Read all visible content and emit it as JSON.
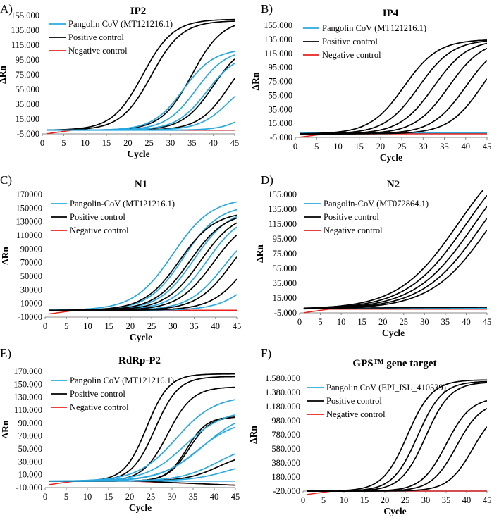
{
  "chart_data": [
    {
      "panel": "A)",
      "type": "line",
      "title": "IP2",
      "xlabel": "Cycle",
      "ylabel": "ΔRn",
      "xlim": [
        0,
        45
      ],
      "ylim": [
        -5000,
        155000
      ],
      "xticks": [
        0,
        5,
        10,
        15,
        20,
        25,
        30,
        35,
        40,
        45
      ],
      "xtick_labels": [
        "0",
        "5",
        "10",
        "15",
        "20",
        "25",
        "30",
        "35",
        "40",
        "45"
      ],
      "yticks": [
        -5000,
        15000,
        35000,
        55000,
        75000,
        95000,
        115000,
        135000,
        155000
      ],
      "ytick_labels": [
        "-5.000",
        "15.000",
        "35.000",
        "55.000",
        "75.000",
        "95.000",
        "115.000",
        "135.000",
        "155.000"
      ],
      "legend": [
        {
          "label": "Pangolin CoV (MT121216.1)",
          "color": "#29a9e0"
        },
        {
          "label": "Positive control",
          "color": "#000000"
        },
        {
          "label": "Negative control",
          "color": "#e8221c"
        }
      ],
      "curves": [
        {
          "group": "positive",
          "mid": 23.5,
          "max": 150000,
          "k": 0.28
        },
        {
          "group": "positive",
          "mid": 25.5,
          "max": 148000,
          "k": 0.28
        },
        {
          "group": "positive",
          "mid": 35.0,
          "max": 150000,
          "k": 0.28
        },
        {
          "group": "positive",
          "mid": 40.0,
          "max": 120000,
          "k": 0.28
        },
        {
          "group": "positive",
          "mid": 43.8,
          "max": 120000,
          "k": 0.28
        },
        {
          "group": "pangolin",
          "mid": 33.0,
          "max": 110000,
          "k": 0.28
        },
        {
          "group": "pangolin",
          "mid": 36.0,
          "max": 110000,
          "k": 0.28
        },
        {
          "group": "pangolin",
          "mid": 38.5,
          "max": 105000,
          "k": 0.28
        },
        {
          "group": "pangolin",
          "mid": 44.0,
          "max": 80000,
          "k": 0.28
        },
        {
          "group": "pangolin",
          "mid": 52.0,
          "max": 100000,
          "k": 0.3
        }
      ]
    },
    {
      "panel": "B)",
      "type": "line",
      "title": "IP4",
      "xlabel": "Cycle",
      "ylabel": "ΔRn",
      "xlim": [
        0,
        45
      ],
      "ylim": [
        -5000,
        155000
      ],
      "xticks": [
        0,
        5,
        10,
        15,
        20,
        25,
        30,
        35,
        40,
        45
      ],
      "xtick_labels": [
        "0",
        "5",
        "10",
        "15",
        "20",
        "25",
        "30",
        "35",
        "40",
        "45"
      ],
      "yticks": [
        -5000,
        15000,
        35000,
        55000,
        75000,
        95000,
        115000,
        135000,
        155000
      ],
      "ytick_labels": [
        "-5.000",
        "15.000",
        "35.000",
        "55.000",
        "75.000",
        "95.000",
        "115.000",
        "135.000",
        "155.000"
      ],
      "legend": [
        {
          "label": "Pangolin CoV (MT121216.1)",
          "color": "#29a9e0"
        },
        {
          "label": "Positive control",
          "color": "#000000"
        },
        {
          "label": "Negative control",
          "color": "#e8221c"
        }
      ],
      "curves": [
        {
          "group": "positive",
          "mid": 25.5,
          "max": 135000,
          "k": 0.25
        },
        {
          "group": "positive",
          "mid": 29.0,
          "max": 135000,
          "k": 0.25
        },
        {
          "group": "positive",
          "mid": 32.5,
          "max": 135000,
          "k": 0.25
        },
        {
          "group": "positive",
          "mid": 36.0,
          "max": 135000,
          "k": 0.25
        },
        {
          "group": "positive",
          "mid": 40.0,
          "max": 135000,
          "k": 0.25
        },
        {
          "group": "positive",
          "mid": 44.0,
          "max": 140000,
          "k": 0.25
        }
      ]
    },
    {
      "panel": "C)",
      "type": "line",
      "title": "N1",
      "xlabel": "Cycle",
      "ylabel": "ΔRn",
      "xlim": [
        0,
        45
      ],
      "ylim": [
        -10000,
        170000
      ],
      "xticks": [
        0,
        5,
        10,
        15,
        20,
        25,
        30,
        35,
        40,
        45
      ],
      "xtick_labels": [
        "0",
        "5",
        "10",
        "15",
        "20",
        "25",
        "30",
        "35",
        "40",
        "45"
      ],
      "yticks": [
        -10000,
        10000,
        30000,
        50000,
        70000,
        90000,
        110000,
        130000,
        150000,
        170000
      ],
      "ytick_labels": [
        "-10000",
        "10000",
        "30000",
        "50000",
        "70000",
        "90000",
        "110000",
        "130000",
        "150000",
        "170000"
      ],
      "legend": [
        {
          "label": "Pangolin-CoV (MT121216.1)",
          "color": "#29a9e0"
        },
        {
          "label": "Positive control",
          "color": "#000000"
        },
        {
          "label": "Negative control",
          "color": "#e8221c"
        }
      ],
      "curves": [
        {
          "group": "pangolin",
          "mid": 30.0,
          "max": 165000,
          "k": 0.22
        },
        {
          "group": "pangolin",
          "mid": 32.5,
          "max": 155000,
          "k": 0.24
        },
        {
          "group": "pangolin",
          "mid": 35.0,
          "max": 150000,
          "k": 0.24
        },
        {
          "group": "pangolin",
          "mid": 38.0,
          "max": 145000,
          "k": 0.24
        },
        {
          "group": "pangolin",
          "mid": 42.0,
          "max": 130000,
          "k": 0.24
        },
        {
          "group": "pangolin",
          "mid": 50.0,
          "max": 100000,
          "k": 0.24
        },
        {
          "group": "positive",
          "mid": 31.5,
          "max": 145000,
          "k": 0.24
        },
        {
          "group": "positive",
          "mid": 34.0,
          "max": 145000,
          "k": 0.24
        },
        {
          "group": "positive",
          "mid": 36.5,
          "max": 145000,
          "k": 0.24
        },
        {
          "group": "positive",
          "mid": 39.5,
          "max": 140000,
          "k": 0.24
        },
        {
          "group": "positive",
          "mid": 44.0,
          "max": 140000,
          "k": 0.24
        },
        {
          "group": "positive",
          "mid": 48.0,
          "max": 140000,
          "k": 0.24
        }
      ]
    },
    {
      "panel": "D)",
      "type": "line",
      "title": "N2",
      "xlabel": "Cycle",
      "ylabel": "ΔRn",
      "xlim": [
        0,
        45
      ],
      "ylim": [
        -5000,
        155000
      ],
      "xticks": [
        0,
        5,
        10,
        15,
        20,
        25,
        30,
        35,
        40,
        45
      ],
      "xtick_labels": [
        "0",
        "5",
        "10",
        "15",
        "20",
        "25",
        "30",
        "35",
        "40",
        "45"
      ],
      "yticks": [
        -5000,
        15000,
        35000,
        55000,
        75000,
        95000,
        115000,
        135000,
        155000
      ],
      "ytick_labels": [
        "-5.000",
        "15.000",
        "35.000",
        "55.000",
        "75.000",
        "95.000",
        "115.000",
        "135.000",
        "155.000"
      ],
      "legend": [
        {
          "label": "Pangolin-CoV (MT072864.1)",
          "color": "#29a9e0"
        },
        {
          "label": "Positive control",
          "color": "#000000"
        },
        {
          "label": "Negative control",
          "color": "#e8221c"
        }
      ],
      "curves": [
        {
          "group": "positive",
          "mid": 38.0,
          "max": 230000,
          "k": 0.14
        },
        {
          "group": "positive",
          "mid": 40.0,
          "max": 230000,
          "k": 0.14
        },
        {
          "group": "positive",
          "mid": 42.0,
          "max": 230000,
          "k": 0.14
        },
        {
          "group": "positive",
          "mid": 44.0,
          "max": 230000,
          "k": 0.14
        },
        {
          "group": "positive",
          "mid": 46.0,
          "max": 230000,
          "k": 0.14
        }
      ]
    },
    {
      "panel": "E)",
      "type": "line",
      "title": "RdRp-P2",
      "xlabel": "Cycle",
      "ylabel": "ΔRn",
      "xlim": [
        0,
        45
      ],
      "ylim": [
        -10000,
        170000
      ],
      "xticks": [
        0,
        5,
        10,
        15,
        20,
        25,
        30,
        35,
        40,
        45
      ],
      "xtick_labels": [
        "0",
        "5",
        "10",
        "15",
        "20",
        "25",
        "30",
        "35",
        "40",
        "45"
      ],
      "yticks": [
        -10000,
        10000,
        30000,
        50000,
        70000,
        90000,
        110000,
        130000,
        150000,
        170000
      ],
      "ytick_labels": [
        "-10.000",
        "10.000",
        "30.000",
        "50.000",
        "70.000",
        "90.000",
        "110.000",
        "130.000",
        "150.000",
        "170.000"
      ],
      "legend": [
        {
          "label": "Pangolin CoV (MT121216.1)",
          "color": "#29a9e0"
        },
        {
          "label": "Positive control",
          "color": "#000000"
        },
        {
          "label": "Negative control",
          "color": "#e8221c"
        }
      ],
      "curves": [
        {
          "group": "positive",
          "mid": 24.0,
          "max": 166000,
          "k": 0.38
        },
        {
          "group": "positive",
          "mid": 26.0,
          "max": 162000,
          "k": 0.36
        },
        {
          "group": "positive",
          "mid": 29.0,
          "max": 146000,
          "k": 0.34
        },
        {
          "group": "positive",
          "mid": 33.5,
          "max": 100000,
          "k": 0.42
        },
        {
          "group": "positive",
          "mid": 34.0,
          "max": 100000,
          "k": 0.4
        },
        {
          "group": "positive",
          "mid": 41.0,
          "max": 45000,
          "k": 0.26
        },
        {
          "group": "pangolin",
          "mid": 31.0,
          "max": 132000,
          "k": 0.22
        },
        {
          "group": "pangolin",
          "mid": 33.0,
          "max": 110000,
          "k": 0.22
        },
        {
          "group": "pangolin",
          "mid": 36.0,
          "max": 95000,
          "k": 0.22
        },
        {
          "group": "pangolin",
          "mid": 37.5,
          "max": 110000,
          "k": 0.2
        },
        {
          "group": "pangolin",
          "mid": 41.0,
          "max": 60000,
          "k": 0.22
        },
        {
          "group": "pangolin",
          "mid": 44.0,
          "max": 35000,
          "k": 0.22
        }
      ]
    },
    {
      "panel": "F)",
      "type": "line",
      "title": "GPS™ gene target",
      "xlabel": "Cycle",
      "ylabel": "ΔRn",
      "xlim": [
        0,
        45
      ],
      "ylim": [
        -20000,
        1580000
      ],
      "xticks": [
        0,
        5,
        10,
        15,
        20,
        25,
        30,
        35,
        40,
        45
      ],
      "xtick_labels": [
        "0",
        "5",
        "10",
        "15",
        "20",
        "25",
        "30",
        "35",
        "40",
        "45"
      ],
      "yticks": [
        -20000,
        180000,
        380000,
        580000,
        780000,
        980000,
        1180000,
        1380000,
        1580000
      ],
      "ytick_labels": [
        "-20.000",
        "180.000",
        "380.000",
        "580.000",
        "780.000",
        "980.000",
        "1.180.000",
        "1.380.000",
        "1.580.000"
      ],
      "legend": [
        {
          "label": "Pangolin CoV (EPI_ISL_410539)",
          "color": "#29a9e0"
        },
        {
          "label": "Positive control",
          "color": "#000000"
        },
        {
          "label": "Negative control",
          "color": "#e8221c"
        }
      ],
      "curves": [
        {
          "group": "positive",
          "mid": 25.5,
          "max": 1580000,
          "k": 0.33
        },
        {
          "group": "positive",
          "mid": 28.0,
          "max": 1560000,
          "k": 0.33
        },
        {
          "group": "positive",
          "mid": 30.0,
          "max": 1550000,
          "k": 0.33
        },
        {
          "group": "positive",
          "mid": 35.0,
          "max": 1330000,
          "k": 0.33
        },
        {
          "group": "positive",
          "mid": 37.5,
          "max": 1270000,
          "k": 0.33
        },
        {
          "group": "positive",
          "mid": 41.5,
          "max": 1200000,
          "k": 0.33
        }
      ]
    }
  ]
}
